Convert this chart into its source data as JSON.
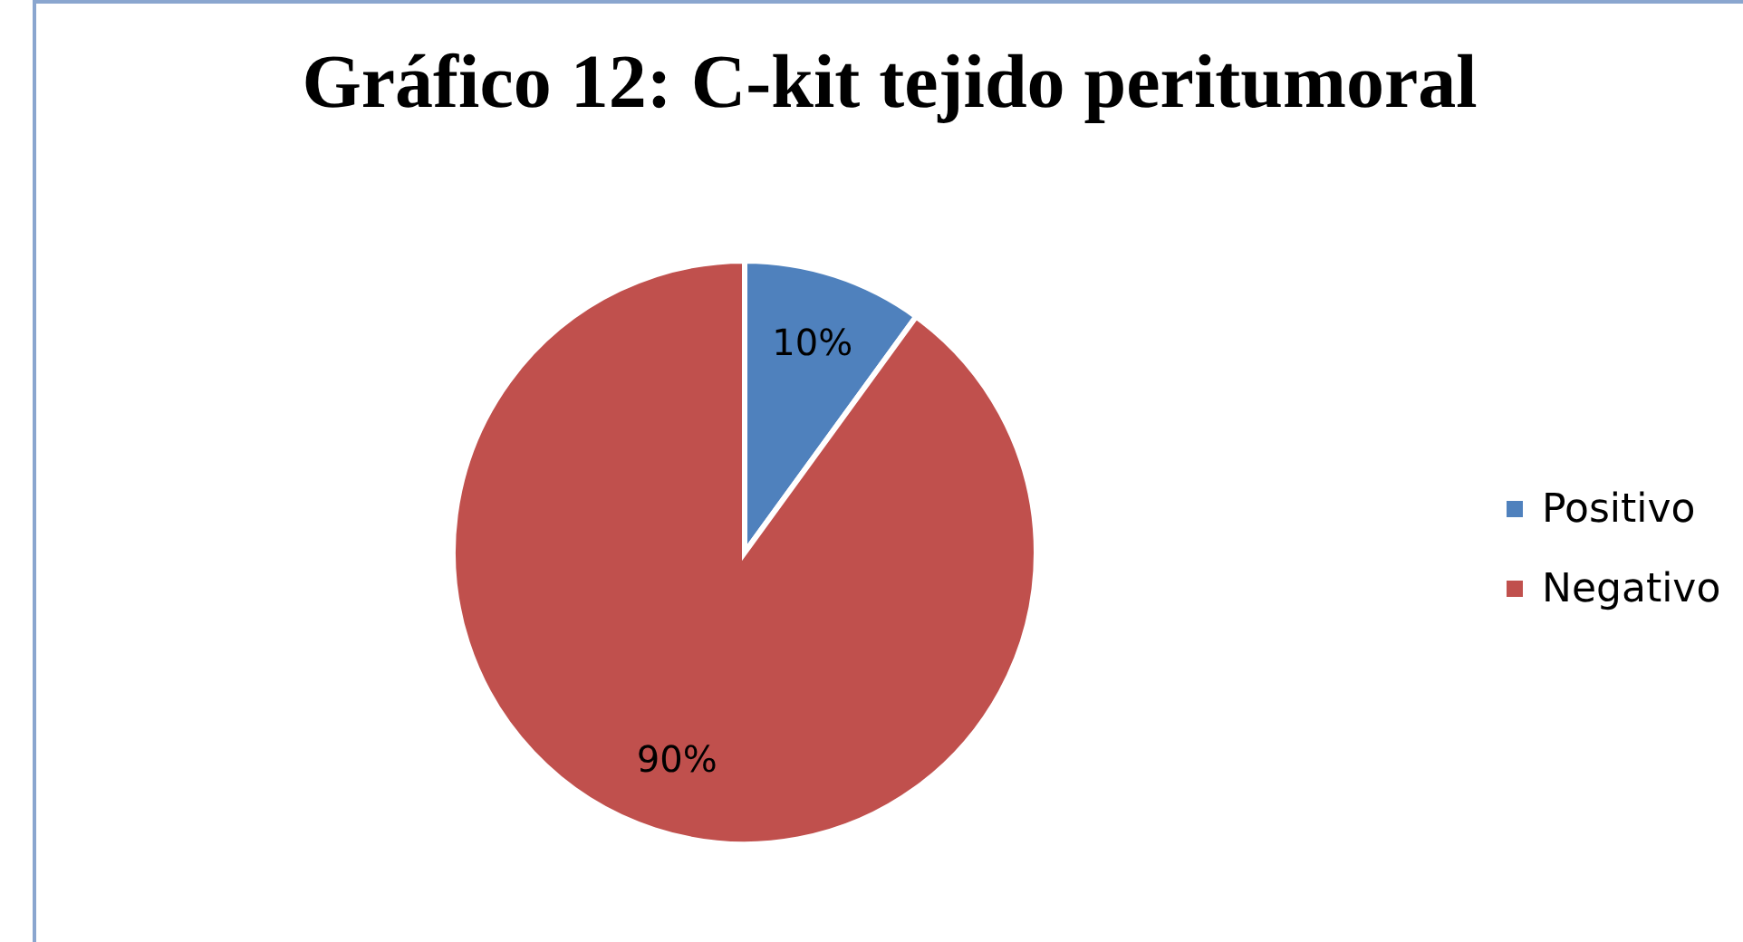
{
  "chart_data": {
    "type": "pie",
    "title": "Gráfico 12: C-kit tejido peritumoral",
    "categories": [
      "Positivo",
      "Negativo"
    ],
    "values": [
      10,
      90
    ],
    "colors": [
      "#4f81bd",
      "#c0504d"
    ],
    "value_labels": [
      "10%",
      "90%"
    ],
    "legend": "right"
  }
}
